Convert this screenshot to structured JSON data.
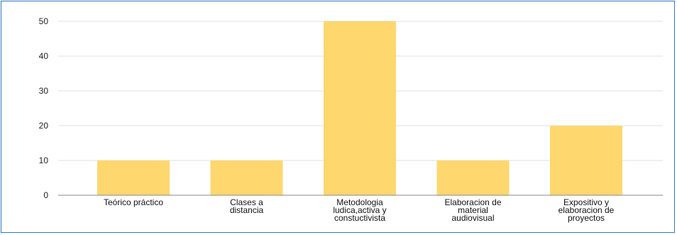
{
  "chart_data": {
    "type": "bar",
    "title": "",
    "xlabel": "",
    "ylabel": "",
    "categories": [
      [
        "Teórico práctico"
      ],
      [
        "Clases a",
        "distancia"
      ],
      [
        "Metodologia",
        "ludica,activa y",
        "constuctivista"
      ],
      [
        "Elaboracion de",
        "material",
        "audiovisual"
      ],
      [
        "Expositivo y",
        "elaboracion de",
        "proyectos"
      ]
    ],
    "values": [
      10,
      10,
      50,
      10,
      20
    ],
    "ylim": [
      0,
      50
    ],
    "yticks": [
      "0",
      "10",
      "20",
      "30",
      "40",
      "50"
    ],
    "grid": true,
    "legend": "none",
    "colors": {
      "bar": "#fed76e",
      "grid": "#e2e2e2",
      "axis": "#888888",
      "frame": "#2f77c0"
    }
  }
}
